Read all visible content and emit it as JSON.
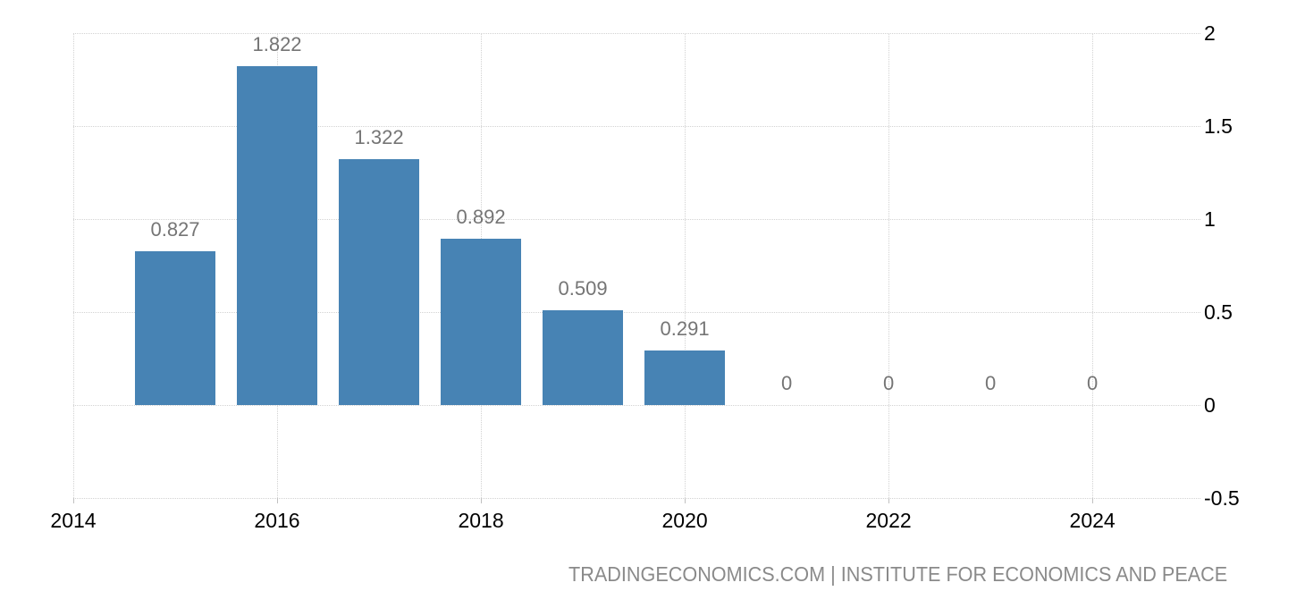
{
  "chart_data": {
    "type": "bar",
    "title": "",
    "xlabel": "",
    "ylabel": "",
    "x": [
      2015,
      2016,
      2017,
      2018,
      2019,
      2020,
      2021,
      2022,
      2023,
      2024
    ],
    "values": [
      0.827,
      1.822,
      1.322,
      0.892,
      0.509,
      0.291,
      0,
      0,
      0,
      0
    ],
    "value_labels": [
      "0.827",
      "1.822",
      "1.322",
      "0.892",
      "0.509",
      "0.291",
      "0",
      "0",
      "0",
      "0"
    ],
    "x_tick_years": [
      2014,
      2016,
      2018,
      2020,
      2022,
      2024
    ],
    "x_tick_labels": [
      "2014",
      "2016",
      "2018",
      "2020",
      "2022",
      "2024"
    ],
    "y_tick_values": [
      2,
      1.5,
      1,
      0.5,
      0,
      -0.5
    ],
    "y_tick_labels": [
      "2",
      "1.5",
      "1",
      "0.5",
      "0",
      "-0.5"
    ],
    "xlim": [
      2014,
      2025.06
    ],
    "ylim": [
      -0.5,
      2
    ],
    "grid": "dotted",
    "legend": false,
    "y_axis_side": "right"
  },
  "colors": {
    "bar": "#4783b4",
    "grid": "#d2d2d2",
    "tick": "#c0c0c0",
    "axis_text": "#000000",
    "value_label": "#757575",
    "footer_text": "#8a8a8a",
    "background": "#ffffff"
  },
  "footer": {
    "source_text": "TRADINGECONOMICS.COM | INSTITUTE FOR ECONOMICS AND PEACE"
  }
}
